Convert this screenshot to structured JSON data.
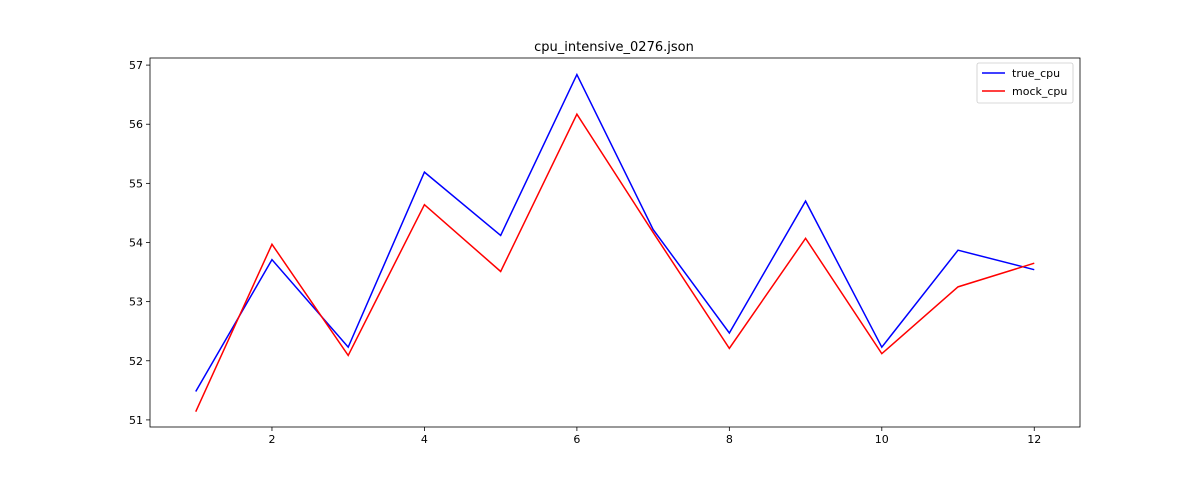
{
  "chart_data": {
    "type": "line",
    "title": "cpu_intensive_0276.json",
    "xlabel": "",
    "ylabel": "",
    "x": [
      1,
      2,
      3,
      4,
      5,
      6,
      7,
      8,
      9,
      10,
      11,
      12
    ],
    "xlim": [
      0.4,
      12.6
    ],
    "ylim": [
      50.88,
      57.12
    ],
    "xticks": [
      2,
      4,
      6,
      8,
      10,
      12
    ],
    "yticks": [
      51,
      52,
      53,
      54,
      55,
      56,
      57
    ],
    "grid": false,
    "legend": "top-right",
    "series": [
      {
        "name": "true_cpu",
        "color": "#0000ff",
        "values": [
          51.48,
          53.71,
          52.23,
          55.19,
          54.12,
          56.84,
          54.22,
          52.47,
          54.7,
          52.23,
          53.87,
          53.54
        ]
      },
      {
        "name": "mock_cpu",
        "color": "#ff0000",
        "values": [
          51.14,
          53.97,
          52.09,
          54.64,
          53.51,
          56.17,
          54.17,
          52.21,
          54.07,
          52.12,
          53.25,
          53.65
        ]
      }
    ]
  }
}
